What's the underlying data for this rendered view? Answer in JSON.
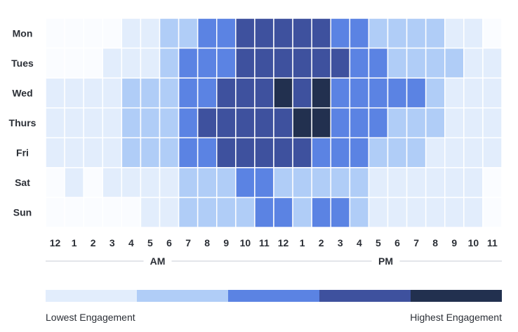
{
  "chart_data": {
    "type": "heatmap",
    "rows": [
      "Mon",
      "Tues",
      "Wed",
      "Thurs",
      "Fri",
      "Sat",
      "Sun"
    ],
    "columns": [
      "12",
      "1",
      "2",
      "3",
      "4",
      "5",
      "6",
      "7",
      "8",
      "9",
      "10",
      "11",
      "12",
      "1",
      "2",
      "3",
      "4",
      "5",
      "6",
      "7",
      "8",
      "9",
      "10",
      "11"
    ],
    "periods": [
      {
        "label": "AM",
        "from_column": 0,
        "to_column": 11
      },
      {
        "label": "PM",
        "from_column": 12,
        "to_column": 23
      }
    ],
    "levels": [
      0,
      1,
      2,
      3,
      4,
      5
    ],
    "values": [
      [
        0,
        0,
        0,
        0,
        1,
        1,
        2,
        2,
        3,
        3,
        4,
        4,
        4,
        4,
        4,
        3,
        3,
        2,
        2,
        2,
        2,
        1,
        1,
        0
      ],
      [
        0,
        0,
        0,
        1,
        1,
        1,
        2,
        3,
        3,
        3,
        4,
        4,
        4,
        4,
        4,
        4,
        3,
        3,
        2,
        2,
        2,
        2,
        1,
        1
      ],
      [
        1,
        1,
        1,
        1,
        2,
        2,
        2,
        3,
        3,
        4,
        4,
        4,
        5,
        4,
        5,
        3,
        3,
        3,
        3,
        3,
        2,
        1,
        1,
        1
      ],
      [
        1,
        1,
        1,
        1,
        2,
        2,
        2,
        3,
        4,
        4,
        4,
        4,
        4,
        5,
        5,
        3,
        3,
        3,
        2,
        2,
        2,
        1,
        1,
        1
      ],
      [
        1,
        1,
        1,
        1,
        2,
        2,
        2,
        3,
        3,
        4,
        4,
        4,
        4,
        4,
        3,
        3,
        3,
        2,
        2,
        2,
        1,
        1,
        1,
        1
      ],
      [
        0,
        1,
        0,
        1,
        1,
        1,
        1,
        2,
        2,
        2,
        3,
        3,
        2,
        2,
        2,
        2,
        2,
        1,
        1,
        1,
        1,
        1,
        1,
        0
      ],
      [
        0,
        0,
        0,
        0,
        0,
        1,
        1,
        2,
        2,
        2,
        2,
        3,
        3,
        2,
        3,
        3,
        2,
        1,
        1,
        1,
        1,
        1,
        1,
        0
      ]
    ],
    "colors": [
      "#fafcff",
      "#e2edfc",
      "#b0cdf7",
      "#5b83e3",
      "#3e519e",
      "#22304f"
    ],
    "legend": {
      "colors": [
        "#e2edfc",
        "#b0cdf7",
        "#5b83e3",
        "#3e519e",
        "#22304f"
      ],
      "low_label": "Lowest Engagement",
      "high_label": "Highest Engagement"
    },
    "title": "",
    "xlabel": "",
    "ylabel": ""
  }
}
